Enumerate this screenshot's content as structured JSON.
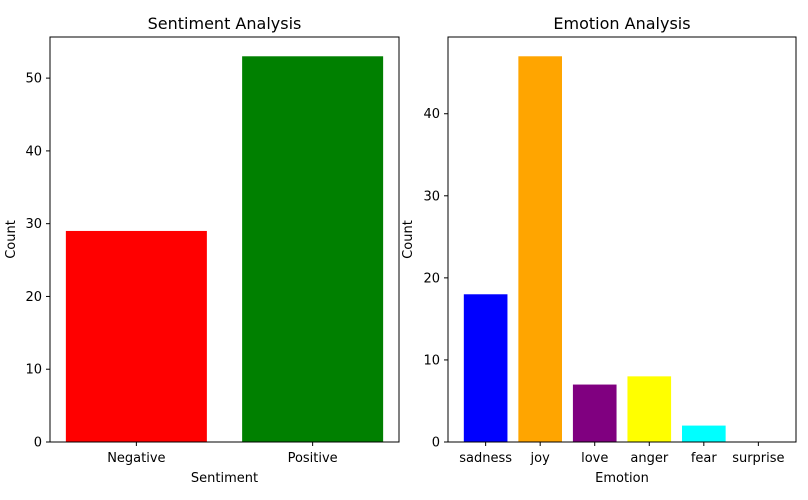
{
  "chart_data": [
    {
      "type": "bar",
      "title": "Sentiment Analysis",
      "xlabel": "Sentiment",
      "ylabel": "Count",
      "categories": [
        "Negative",
        "Positive"
      ],
      "values": [
        29,
        53
      ],
      "colors": [
        "#ff0000",
        "#008000"
      ],
      "ylim": [
        0,
        55.65
      ],
      "yticks": [
        0,
        10,
        20,
        30,
        40,
        50
      ],
      "grid": false,
      "legend": "none"
    },
    {
      "type": "bar",
      "title": "Emotion Analysis",
      "xlabel": "Emotion",
      "ylabel": "Count",
      "categories": [
        "sadness",
        "joy",
        "love",
        "anger",
        "fear",
        "surprise"
      ],
      "values": [
        18,
        47,
        7,
        8,
        2,
        0
      ],
      "colors": [
        "#0000ff",
        "#ffa500",
        "#800080",
        "#ffff00",
        "#00ffff",
        "#ff0000"
      ],
      "ylim": [
        0,
        49.35
      ],
      "yticks": [
        0,
        10,
        20,
        30,
        40
      ],
      "grid": false,
      "legend": "none"
    }
  ]
}
